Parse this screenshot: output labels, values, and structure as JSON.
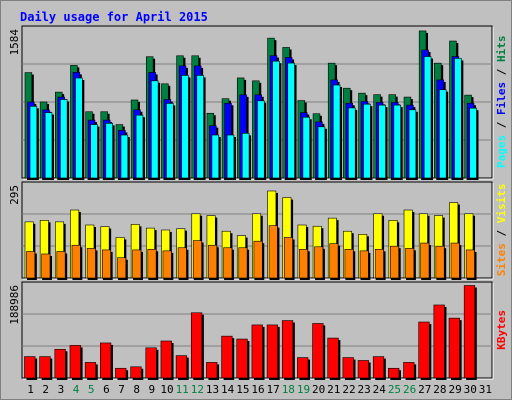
{
  "title": "Daily usage for April 2015",
  "colors": {
    "hits": "#008040",
    "files": "#0000ff",
    "pages": "#00ffff",
    "visits": "#ffff00",
    "sites": "#ff8000",
    "kbytes": "#ff0000",
    "title": "#0000ff",
    "weekend": "#008040",
    "weekday": "#000000"
  },
  "chart_data": [
    {
      "type": "bar",
      "panel": "hits-files-pages",
      "ymax_label": "1584",
      "ylim": [
        0,
        1584
      ],
      "grid": true,
      "side_label": [
        "Pages",
        "Files",
        "Hits"
      ],
      "categories": [
        "1",
        "2",
        "3",
        "4",
        "5",
        "6",
        "7",
        "8",
        "9",
        "10",
        "11",
        "12",
        "13",
        "14",
        "15",
        "16",
        "17",
        "18",
        "19",
        "20",
        "21",
        "22",
        "23",
        "24",
        "25",
        "26",
        "27",
        "28",
        "29",
        "30",
        "31"
      ],
      "series": [
        {
          "name": "Hits",
          "values": [
            1128,
            814,
            919,
            1205,
            709,
            709,
            572,
            835,
            1298,
            1008,
            1308,
            1308,
            693,
            849,
            1071,
            1040,
            1497,
            1397,
            829,
            688,
            1229,
            961,
            908,
            892,
            892,
            866,
            1574,
            1229,
            1466,
            887,
            0
          ]
        },
        {
          "name": "Files",
          "values": [
            814,
            730,
            866,
            1130,
            620,
            620,
            510,
            730,
            1130,
            840,
            1200,
            1200,
            560,
            800,
            890,
            890,
            1310,
            1290,
            700,
            600,
            1050,
            800,
            820,
            810,
            810,
            780,
            1370,
            1050,
            1300,
            800,
            0
          ]
        },
        {
          "name": "Pages",
          "values": [
            767,
            700,
            840,
            1070,
            572,
            585,
            460,
            672,
            1040,
            798,
            1098,
            1098,
            460,
            460,
            478,
            826,
            1250,
            1230,
            650,
            548,
            995,
            750,
            790,
            780,
            780,
            730,
            1300,
            945,
            1280,
            747,
            0
          ]
        }
      ]
    },
    {
      "type": "bar",
      "panel": "visits-sites",
      "ymax_label": "295",
      "ylim": [
        0,
        295
      ],
      "grid": true,
      "side_label": [
        "Sites",
        "Visits"
      ],
      "categories": [
        "1",
        "2",
        "3",
        "4",
        "5",
        "6",
        "7",
        "8",
        "9",
        "10",
        "11",
        "12",
        "13",
        "14",
        "15",
        "16",
        "17",
        "18",
        "19",
        "20",
        "21",
        "22",
        "23",
        "24",
        "25",
        "26",
        "27",
        "28",
        "29",
        "30",
        "31"
      ],
      "series": [
        {
          "name": "Visits",
          "values": [
            180,
            185,
            180,
            218,
            170,
            165,
            130,
            172,
            160,
            154,
            158,
            206,
            200,
            150,
            136,
            206,
            279,
            258,
            170,
            166,
            192,
            150,
            140,
            206,
            185,
            218,
            206,
            200,
            242,
            206,
            0
          ]
        },
        {
          "name": "Sites",
          "values": [
            85,
            77,
            85,
            105,
            95,
            90,
            65,
            90,
            92,
            87,
            97,
            120,
            105,
            97,
            97,
            118,
            168,
            130,
            92,
            100,
            110,
            92,
            87,
            92,
            102,
            95,
            112,
            102,
            112,
            90,
            0
          ]
        }
      ]
    },
    {
      "type": "bar",
      "panel": "kbytes",
      "ymax_label": "188986",
      "ylim": [
        0,
        188986
      ],
      "grid": true,
      "side_label": [
        "KBytes"
      ],
      "categories": [
        "1",
        "2",
        "3",
        "4",
        "5",
        "6",
        "7",
        "8",
        "9",
        "10",
        "11",
        "12",
        "13",
        "14",
        "15",
        "16",
        "17",
        "18",
        "19",
        "20",
        "21",
        "22",
        "23",
        "24",
        "25",
        "26",
        "27",
        "28",
        "29",
        "30",
        "31"
      ],
      "series": [
        {
          "name": "KBytes",
          "values": [
            44000,
            44000,
            59000,
            67000,
            32000,
            72000,
            20000,
            23000,
            62000,
            76000,
            46000,
            134000,
            32000,
            86000,
            80000,
            109000,
            109000,
            118000,
            42000,
            112000,
            82000,
            42000,
            36000,
            44000,
            20000,
            32000,
            115000,
            150000,
            123000,
            190000,
            0
          ]
        }
      ]
    }
  ],
  "x_axis": {
    "labels": [
      "1",
      "2",
      "3",
      "4",
      "5",
      "6",
      "7",
      "8",
      "9",
      "10",
      "11",
      "12",
      "13",
      "14",
      "15",
      "16",
      "17",
      "18",
      "19",
      "20",
      "21",
      "22",
      "23",
      "24",
      "25",
      "26",
      "27",
      "28",
      "29",
      "30",
      "31"
    ],
    "weekend": [
      false,
      false,
      false,
      true,
      true,
      false,
      false,
      false,
      false,
      false,
      true,
      true,
      false,
      false,
      false,
      false,
      false,
      true,
      true,
      false,
      false,
      false,
      false,
      false,
      true,
      true,
      false,
      false,
      false,
      false,
      false
    ]
  }
}
